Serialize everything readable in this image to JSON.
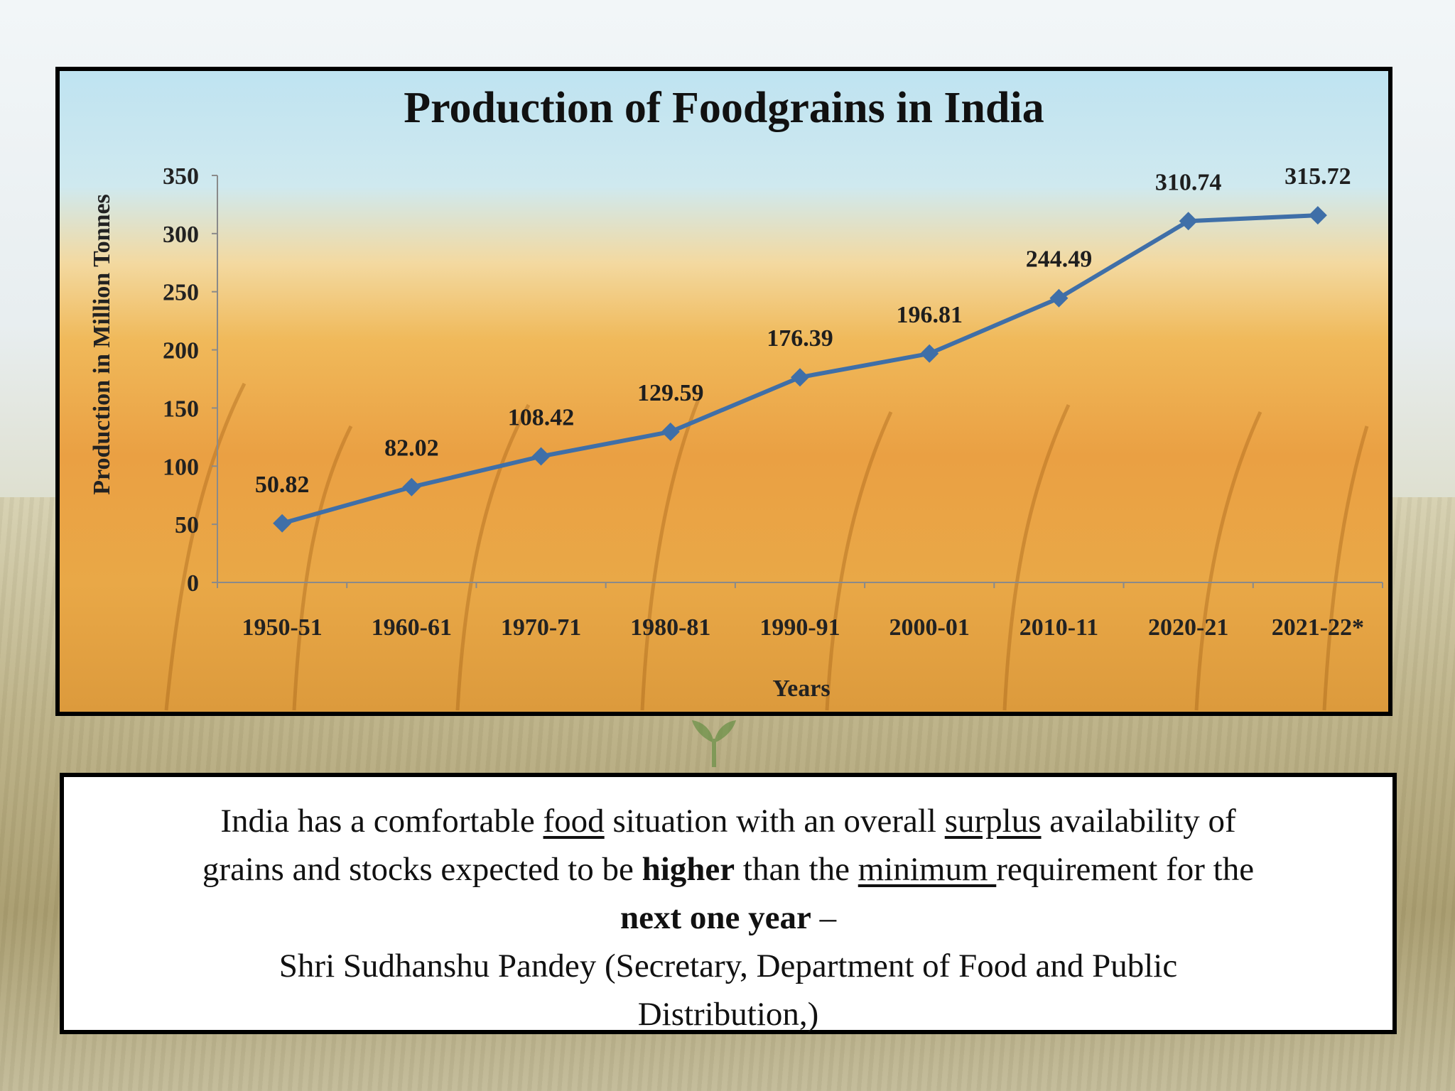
{
  "chart_data": {
    "type": "line",
    "title": "Production of Foodgrains in India",
    "xlabel": "Years",
    "ylabel": "Production in Million Tonnes",
    "ylim": [
      0,
      350
    ],
    "yticks": [
      "0",
      "50",
      "100",
      "150",
      "200",
      "250",
      "300",
      "350"
    ],
    "categories": [
      "1950-51",
      "1960-61",
      "1970-71",
      "1980-81",
      "1990-91",
      "2000-01",
      "2010-11",
      "2020-21",
      "2021-22*"
    ],
    "values": [
      50.82,
      82.02,
      108.42,
      129.59,
      176.39,
      196.81,
      244.49,
      310.74,
      315.72
    ],
    "data_labels": [
      "50.82",
      "82.02",
      "108.42",
      "129.59",
      "176.39",
      "196.81",
      "244.49",
      "310.74",
      "315.72"
    ],
    "line_color": "#3f6fa8",
    "grid": false,
    "legend": "none"
  },
  "quote": {
    "l1_pre": "India has a comfortable ",
    "l1_u1": "food",
    "l1_mid": " situation with an overall ",
    "l1_u2": "surplus",
    "l1_post": " availability of",
    "l2_pre": "grains and stocks expected to be ",
    "l2_b": "higher",
    "l2_mid": " than the ",
    "l2_u": "minimum ",
    "l2_post": "requirement for the",
    "l3_b": "next one year",
    "l3_post": " –",
    "l4": "Shri Sudhanshu Pandey (Secretary, Department of Food and Public",
    "l5": "Distribution,)"
  }
}
